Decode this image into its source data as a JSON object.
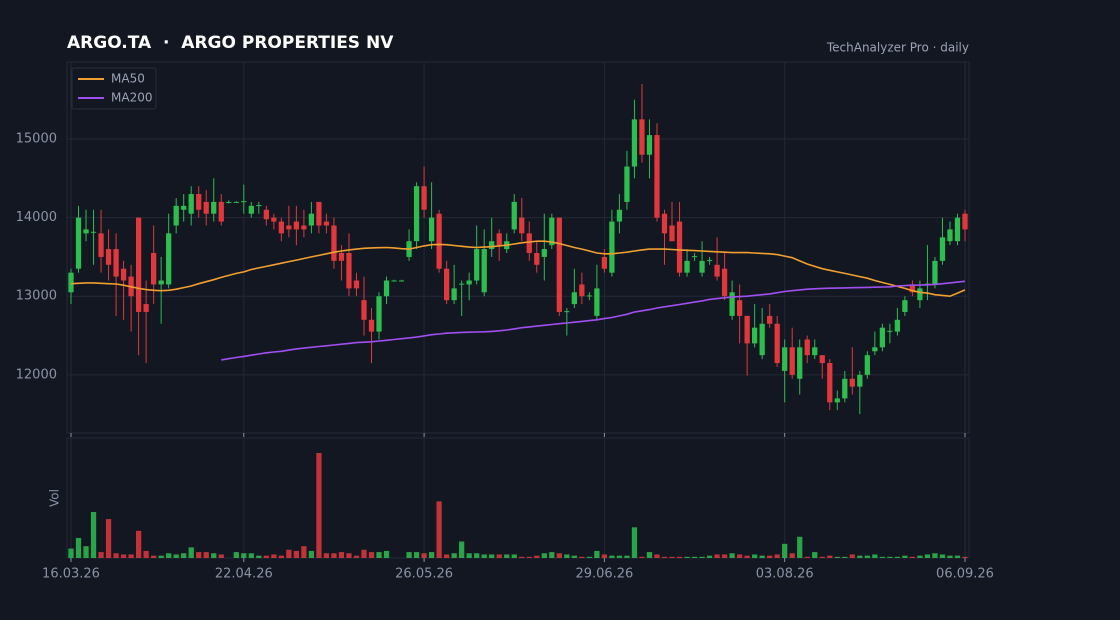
{
  "chart_data": {
    "type": "candlestick",
    "title": "ARGO.TA  ·  ARGO PROPERTIES NV",
    "subtitle": "TechAnalyzer Pro · daily",
    "volume_label": "Vol",
    "xlim": [
      0,
      119
    ],
    "xticks": [
      {
        "value": 0,
        "label": "16.03.26"
      },
      {
        "value": 23,
        "label": "22.04.26"
      },
      {
        "value": 47,
        "label": "26.05.26"
      },
      {
        "value": 71,
        "label": "29.06.26"
      },
      {
        "value": 95,
        "label": "03.08.26"
      },
      {
        "value": 119,
        "label": "06.09.26"
      }
    ],
    "ylim": [
      11260,
      15980
    ],
    "yticks": [
      12000,
      13000,
      14000,
      15000
    ],
    "volume_lim": [
      0,
      100
    ],
    "grid": true,
    "legend": "upper-left",
    "up_color": "#2ebd4f",
    "down_color": "#e0383c",
    "open": [
      13050,
      13350,
      13800,
      13820,
      13800,
      13600,
      13600,
      13350,
      13250,
      14000,
      12900,
      13550,
      13150,
      13150,
      13900,
      14100,
      14050,
      14300,
      14200,
      14050,
      14200,
      14200,
      14200,
      14200,
      14050,
      14150,
      14100,
      14000,
      13950,
      13900,
      13950,
      13900,
      13900,
      14200,
      13950,
      13900,
      13550,
      13550,
      13200,
      12950,
      12700,
      12550,
      13000,
      13200,
      13200,
      13500,
      13700,
      14400,
      13700,
      14050,
      13350,
      12950,
      13150,
      13150,
      13200,
      13050,
      13600,
      13800,
      13600,
      13850,
      14000,
      13800,
      13550,
      13500,
      13650,
      14000,
      12800,
      12900,
      13150,
      13000,
      12750,
      13500,
      13300,
      13950,
      14200,
      14650,
      15250,
      14800,
      15050,
      14050,
      13900,
      13950,
      13300,
      13500,
      13300,
      13450,
      13400,
      13350,
      12750,
      12950,
      12750,
      12400,
      12250,
      12750,
      12650,
      12050,
      12350,
      11950,
      12450,
      12250,
      12250,
      12150,
      11650,
      11700,
      11950,
      11850,
      12000,
      12300,
      12350,
      12550,
      12550,
      12800,
      13150,
      12950,
      13150,
      13150,
      13450,
      13700,
      13700,
      14050
    ],
    "high": [
      13350,
      14150,
      14100,
      14100,
      14100,
      13850,
      13800,
      13450,
      13400,
      14000,
      13200,
      13900,
      13500,
      14050,
      14250,
      14300,
      14400,
      14400,
      14350,
      14500,
      14300,
      14220,
      14210,
      14420,
      14200,
      14200,
      14150,
      14050,
      14000,
      14150,
      14150,
      14100,
      14200,
      14200,
      14050,
      14000,
      13650,
      13800,
      13300,
      13250,
      12850,
      13050,
      13250,
      13210,
      13210,
      13850,
      14450,
      14650,
      14450,
      14100,
      13450,
      13400,
      13200,
      13300,
      13900,
      13850,
      14000,
      13850,
      13800,
      14300,
      14250,
      13950,
      13700,
      14050,
      14050,
      14000,
      12850,
      13350,
      13300,
      13050,
      13400,
      13600,
      14100,
      14300,
      14850,
      15500,
      15700,
      15250,
      15200,
      14100,
      14200,
      14200,
      13600,
      13550,
      13700,
      13500,
      13750,
      13550,
      13200,
      13150,
      12750,
      12900,
      12850,
      12900,
      12750,
      12450,
      12600,
      12450,
      12500,
      12450,
      12250,
      12200,
      11800,
      12050,
      12350,
      12050,
      12300,
      12550,
      12650,
      12650,
      12850,
      13000,
      13200,
      13200,
      13650,
      13500,
      14000,
      13950,
      14050,
      14100
    ],
    "low": [
      12900,
      13300,
      13700,
      13400,
      13300,
      13200,
      12750,
      12700,
      12550,
      12250,
      12150,
      12900,
      12650,
      13100,
      13800,
      13950,
      13900,
      14000,
      13900,
      13950,
      13900,
      14180,
      14190,
      14050,
      14000,
      14050,
      13900,
      13850,
      13700,
      13750,
      13650,
      13750,
      13800,
      13800,
      13800,
      13350,
      13200,
      13000,
      13000,
      12500,
      12150,
      12450,
      12900,
      13190,
      13190,
      13450,
      13600,
      14000,
      13600,
      13300,
      12900,
      12900,
      12750,
      12950,
      13150,
      13000,
      13500,
      13450,
      13550,
      13800,
      13700,
      13450,
      13300,
      13200,
      13600,
      12750,
      12500,
      12850,
      12900,
      12950,
      12700,
      13300,
      13250,
      13800,
      14100,
      14500,
      14700,
      14500,
      13950,
      13400,
      13700,
      13250,
      13250,
      13450,
      13250,
      13400,
      13200,
      12950,
      12700,
      12400,
      11990,
      12350,
      12200,
      12600,
      12100,
      11650,
      11950,
      11750,
      12150,
      12200,
      11950,
      11550,
      11550,
      11650,
      11750,
      11500,
      11950,
      12250,
      12300,
      12400,
      12500,
      12750,
      13000,
      12850,
      12950,
      13100,
      13400,
      13650,
      13650,
      13700
    ],
    "close": [
      13300,
      14000,
      13850,
      13820,
      13500,
      13400,
      13250,
      13200,
      13000,
      12800,
      12800,
      13150,
      13200,
      13800,
      14150,
      14150,
      14300,
      14100,
      14050,
      14200,
      13950,
      14200,
      14200,
      14210,
      14150,
      14160,
      13980,
      13950,
      13800,
      13850,
      13850,
      13850,
      14050,
      13900,
      13900,
      13450,
      13450,
      13100,
      13100,
      12700,
      12550,
      13000,
      13200,
      13200,
      13200,
      13700,
      14400,
      14100,
      14000,
      13350,
      12950,
      13100,
      13160,
      13200,
      13600,
      13600,
      13700,
      13650,
      13700,
      14200,
      13800,
      13550,
      13400,
      13600,
      14000,
      12800,
      12810,
      13050,
      13000,
      13010,
      13100,
      13350,
      13950,
      14100,
      14650,
      15250,
      14800,
      15050,
      14000,
      13800,
      13700,
      13300,
      13450,
      13510,
      13450,
      13460,
      13250,
      13000,
      13050,
      12750,
      12400,
      12600,
      12650,
      12650,
      12150,
      12350,
      12000,
      12350,
      12250,
      12350,
      12150,
      11650,
      11700,
      11950,
      11850,
      12000,
      12250,
      12350,
      12600,
      12560,
      12700,
      12950,
      13050,
      13100,
      13160,
      13450,
      13750,
      13850,
      14000,
      13850
    ],
    "volume": [
      8,
      17,
      10,
      39,
      5,
      33,
      4,
      3,
      3,
      23,
      6,
      2,
      2,
      4,
      3,
      4,
      9,
      5,
      5,
      4,
      3,
      0,
      5,
      4,
      4,
      2,
      2,
      3,
      2,
      7,
      6,
      10,
      6,
      89,
      4,
      4,
      5,
      4,
      2,
      7,
      5,
      5,
      6,
      0,
      0,
      5,
      5,
      4,
      5,
      48,
      3,
      4,
      14,
      4,
      4,
      3,
      3,
      3,
      3,
      3,
      1,
      1,
      2,
      4,
      5,
      4,
      3,
      2,
      1,
      1,
      6,
      3,
      2,
      2,
      2,
      26,
      1,
      5,
      3,
      1,
      1,
      1,
      1,
      1,
      1,
      2,
      3,
      3,
      4,
      3,
      2,
      3,
      2,
      2,
      3,
      12,
      4,
      18,
      1,
      5,
      1,
      2,
      1,
      1,
      3,
      2,
      2,
      3,
      1,
      1,
      1,
      2,
      1,
      2,
      3,
      4,
      3,
      2,
      2,
      1
    ],
    "series": [
      {
        "name": "MA50",
        "color": "#f0a030",
        "values": [
          13160,
          13165,
          13170,
          13170,
          13165,
          13160,
          13155,
          13140,
          13120,
          13100,
          13085,
          13075,
          13070,
          13075,
          13090,
          13110,
          13130,
          13160,
          13185,
          13210,
          13240,
          13265,
          13290,
          13310,
          13340,
          13360,
          13380,
          13400,
          13420,
          13440,
          13460,
          13480,
          13500,
          13520,
          13540,
          13560,
          13575,
          13590,
          13600,
          13610,
          13615,
          13618,
          13620,
          13615,
          13605,
          13600,
          13620,
          13640,
          13655,
          13660,
          13655,
          13645,
          13635,
          13625,
          13620,
          13625,
          13630,
          13640,
          13650,
          13665,
          13680,
          13690,
          13700,
          13700,
          13690,
          13670,
          13645,
          13620,
          13600,
          13575,
          13550,
          13540,
          13540,
          13550,
          13560,
          13575,
          13590,
          13600,
          13600,
          13600,
          13595,
          13590,
          13585,
          13580,
          13575,
          13570,
          13565,
          13560,
          13555,
          13555,
          13555,
          13550,
          13545,
          13540,
          13530,
          13510,
          13490,
          13450,
          13410,
          13380,
          13350,
          13330,
          13310,
          13290,
          13270,
          13250,
          13230,
          13200,
          13175,
          13150,
          13125,
          13100,
          13070,
          13050,
          13040,
          13020,
          13010,
          13000,
          13040,
          13080
        ]
      },
      {
        "name": "MA200",
        "color": "#a050f0",
        "values": [
          null,
          null,
          null,
          null,
          null,
          null,
          null,
          null,
          null,
          null,
          null,
          null,
          null,
          null,
          null,
          null,
          null,
          null,
          null,
          null,
          12190,
          12205,
          12220,
          12235,
          12250,
          12265,
          12280,
          12290,
          12300,
          12315,
          12330,
          12340,
          12350,
          12360,
          12370,
          12380,
          12390,
          12400,
          12410,
          12415,
          12420,
          12430,
          12440,
          12450,
          12460,
          12470,
          12480,
          12495,
          12510,
          12520,
          12530,
          12535,
          12540,
          12542,
          12545,
          12548,
          12552,
          12560,
          12570,
          12585,
          12600,
          12610,
          12620,
          12630,
          12640,
          12650,
          12660,
          12670,
          12680,
          12690,
          12700,
          12715,
          12730,
          12750,
          12770,
          12800,
          12815,
          12830,
          12850,
          12865,
          12880,
          12895,
          12910,
          12925,
          12940,
          12960,
          12970,
          12980,
          12990,
          12995,
          13000,
          13010,
          13020,
          13030,
          13045,
          13060,
          13070,
          13080,
          13090,
          13095,
          13100,
          13102,
          13104,
          13106,
          13108,
          13110,
          13112,
          13115,
          13118,
          13120,
          13130,
          13135,
          13140,
          13142,
          13145,
          13150,
          13160,
          13170,
          13180,
          13190
        ]
      }
    ]
  }
}
